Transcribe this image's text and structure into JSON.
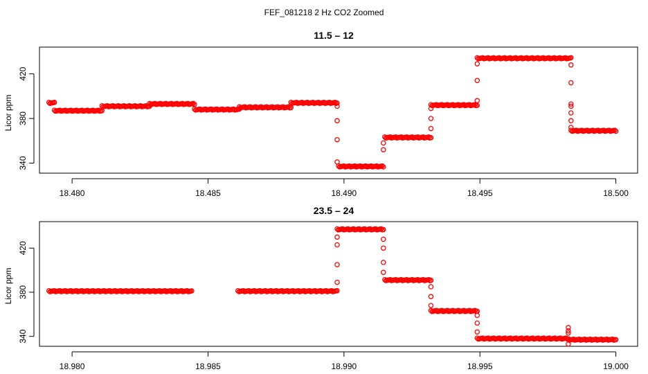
{
  "figure": {
    "title": "FEF_081218  2 Hz CO2 Zoomed",
    "point_color": "#ff0000"
  },
  "chart_data": [
    {
      "type": "scatter",
      "title": "11.5 – 12",
      "xlabel": "",
      "ylabel": "Licor ppm",
      "xlim": [
        18.4788,
        18.5008
      ],
      "ylim": [
        331,
        444
      ],
      "x_ticks": [
        18.48,
        18.485,
        18.49,
        18.495,
        18.5
      ],
      "x_tick_labels": [
        "18.480",
        "18.485",
        "18.490",
        "18.495",
        "18.500"
      ],
      "y_ticks": [
        340,
        380,
        420
      ],
      "y_tick_labels": [
        "340",
        "380",
        "420"
      ],
      "grid": false,
      "series": [
        {
          "marker": "open-circle",
          "color": "#ff0000",
          "segments": [
            {
              "x0": 18.47915,
              "x1": 18.47935,
              "y": 394
            },
            {
              "x0": 18.47935,
              "x1": 18.4811,
              "y": 387
            },
            {
              "x0": 18.4811,
              "x1": 18.48285,
              "y": 391
            },
            {
              "x0": 18.48285,
              "x1": 18.4845,
              "y": 393
            },
            {
              "x0": 18.4845,
              "x1": 18.48615,
              "y": 388
            },
            {
              "x0": 18.48615,
              "x1": 18.48805,
              "y": 390
            },
            {
              "x0": 18.48805,
              "x1": 18.48975,
              "y": 394
            },
            {
              "x0": 18.4898,
              "x1": 18.49145,
              "y": 337
            },
            {
              "x0": 18.4915,
              "x1": 18.4932,
              "y": 363
            },
            {
              "x0": 18.4932,
              "x1": 18.4949,
              "y": 392
            },
            {
              "x0": 18.4949,
              "x1": 18.49835,
              "y": 434
            },
            {
              "x0": 18.49835,
              "x1": 18.5,
              "y": 369
            }
          ],
          "transitions": [
            {
              "x": 18.48975,
              "y": [
                391,
                378,
                361,
                341
              ]
            },
            {
              "x": 18.49145,
              "y": [
                352,
                358
              ]
            },
            {
              "x": 18.4932,
              "y": [
                371,
                380,
                389
              ]
            },
            {
              "x": 18.4949,
              "y": [
                396,
                414,
                429
              ]
            },
            {
              "x": 18.49835,
              "y": [
                428,
                412,
                393,
                391,
                385,
                378,
                372
              ]
            }
          ]
        }
      ]
    },
    {
      "type": "scatter",
      "title": "23.5 – 24",
      "xlabel": "",
      "ylabel": "Licor ppm",
      "xlim": [
        18.9788,
        19.0008
      ],
      "ylim": [
        331,
        444
      ],
      "x_ticks": [
        18.98,
        18.985,
        18.99,
        18.995,
        19.0
      ],
      "x_tick_labels": [
        "18.980",
        "18.985",
        "18.990",
        "18.995",
        "19.000"
      ],
      "y_ticks": [
        340,
        380,
        420
      ],
      "y_tick_labels": [
        "340",
        "380",
        "420"
      ],
      "grid": false,
      "series": [
        {
          "marker": "open-circle",
          "color": "#ff0000",
          "segments": [
            {
              "x0": 18.97915,
              "x1": 18.9844,
              "y": 381
            },
            {
              "x0": 18.9861,
              "x1": 18.98975,
              "y": 381
            },
            {
              "x0": 18.98975,
              "x1": 18.99145,
              "y": 437
            },
            {
              "x0": 18.9915,
              "x1": 18.9932,
              "y": 391
            },
            {
              "x0": 18.9932,
              "x1": 18.9949,
              "y": 363
            },
            {
              "x0": 18.9949,
              "x1": 18.99825,
              "y": 338
            },
            {
              "x0": 18.99825,
              "x1": 19.0,
              "y": 337
            }
          ],
          "transitions": [
            {
              "x": 18.98975,
              "y": [
                389,
                405,
                423,
                430
              ]
            },
            {
              "x": 18.99145,
              "y": [
                428,
                420,
                407,
                398
              ]
            },
            {
              "x": 18.9932,
              "y": [
                385,
                376,
                368
              ]
            },
            {
              "x": 18.9949,
              "y": [
                359,
                352,
                344
              ]
            },
            {
              "x": 18.99825,
              "y": [
                348,
                345,
                343,
                333
              ]
            }
          ]
        }
      ]
    }
  ]
}
